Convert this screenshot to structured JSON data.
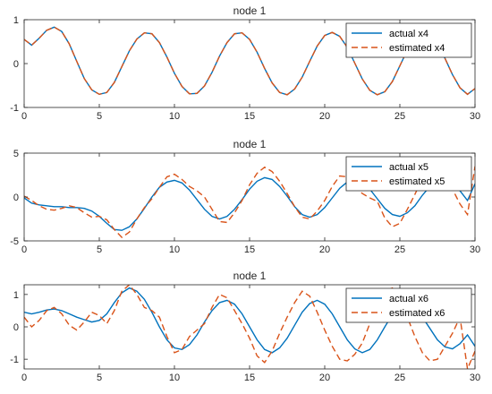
{
  "chart_data": [
    {
      "type": "line",
      "title": "node 1",
      "xlim": [
        0,
        30
      ],
      "ylim": [
        -1,
        1
      ],
      "xticks": [
        0,
        5,
        10,
        15,
        20,
        25,
        30
      ],
      "yticks": [
        -1,
        0,
        1
      ],
      "legend": "top-right",
      "series": [
        {
          "name": "actual x4",
          "color": "#0072BD",
          "style": "solid",
          "x": [
            0,
            0.5,
            1,
            1.5,
            2,
            2.5,
            3,
            3.5,
            4,
            4.5,
            5,
            5.5,
            6,
            6.5,
            7,
            7.5,
            8,
            8.5,
            9,
            9.5,
            10,
            10.5,
            11,
            11.5,
            12,
            12.5,
            13,
            13.5,
            14,
            14.5,
            15,
            15.5,
            16,
            16.5,
            17,
            17.5,
            18,
            18.5,
            19,
            19.5,
            20,
            20.5,
            21,
            21.5,
            22,
            22.5,
            23,
            23.5,
            24,
            24.5,
            25,
            25.5,
            26,
            26.5,
            27,
            27.5,
            28,
            28.5,
            29,
            29.5,
            30
          ],
          "y": [
            0.55,
            0.42,
            0.58,
            0.76,
            0.83,
            0.73,
            0.45,
            0.05,
            -0.34,
            -0.6,
            -0.7,
            -0.66,
            -0.43,
            -0.07,
            0.29,
            0.56,
            0.7,
            0.68,
            0.48,
            0.15,
            -0.22,
            -0.52,
            -0.69,
            -0.68,
            -0.51,
            -0.2,
            0.17,
            0.48,
            0.68,
            0.7,
            0.55,
            0.26,
            -0.11,
            -0.44,
            -0.66,
            -0.71,
            -0.58,
            -0.31,
            0.05,
            0.4,
            0.64,
            0.71,
            0.62,
            0.37,
            0.01,
            -0.35,
            -0.61,
            -0.71,
            -0.64,
            -0.41,
            -0.05,
            0.31,
            0.59,
            0.71,
            0.66,
            0.46,
            0.12,
            -0.25,
            -0.55,
            -0.7,
            -0.57
          ]
        },
        {
          "name": "estimated x4",
          "color": "#D95319",
          "style": "dashed",
          "x": [
            0,
            0.5,
            1,
            1.5,
            2,
            2.5,
            3,
            3.5,
            4,
            4.5,
            5,
            5.5,
            6,
            6.5,
            7,
            7.5,
            8,
            8.5,
            9,
            9.5,
            10,
            10.5,
            11,
            11.5,
            12,
            12.5,
            13,
            13.5,
            14,
            14.5,
            15,
            15.5,
            16,
            16.5,
            17,
            17.5,
            18,
            18.5,
            19,
            19.5,
            20,
            20.5,
            21,
            21.5,
            22,
            22.5,
            23,
            23.5,
            24,
            24.5,
            25,
            25.5,
            26,
            26.5,
            27,
            27.5,
            28,
            28.5,
            29,
            29.5,
            30
          ],
          "y": [
            0.55,
            0.42,
            0.58,
            0.76,
            0.83,
            0.73,
            0.45,
            0.05,
            -0.34,
            -0.6,
            -0.7,
            -0.66,
            -0.43,
            -0.07,
            0.29,
            0.56,
            0.7,
            0.68,
            0.48,
            0.15,
            -0.22,
            -0.52,
            -0.69,
            -0.68,
            -0.51,
            -0.2,
            0.17,
            0.48,
            0.68,
            0.7,
            0.55,
            0.26,
            -0.11,
            -0.44,
            -0.66,
            -0.71,
            -0.58,
            -0.31,
            0.05,
            0.4,
            0.64,
            0.71,
            0.62,
            0.37,
            0.01,
            -0.35,
            -0.61,
            -0.71,
            -0.64,
            -0.41,
            -0.05,
            0.31,
            0.59,
            0.71,
            0.66,
            0.46,
            0.12,
            -0.25,
            -0.55,
            -0.7,
            -0.57
          ]
        }
      ]
    },
    {
      "type": "line",
      "title": "node 1",
      "xlim": [
        0,
        30
      ],
      "ylim": [
        -5,
        5
      ],
      "xticks": [
        0,
        5,
        10,
        15,
        20,
        25,
        30
      ],
      "yticks": [
        -5,
        0,
        5
      ],
      "legend": "top-right",
      "series": [
        {
          "name": "actual x5",
          "color": "#0072BD",
          "style": "solid",
          "x": [
            0,
            0.5,
            1,
            1.5,
            2,
            2.5,
            3,
            3.5,
            4,
            4.5,
            5,
            5.5,
            6,
            6.5,
            7,
            7.5,
            8,
            8.5,
            9,
            9.5,
            10,
            10.5,
            11,
            11.5,
            12,
            12.5,
            13,
            13.5,
            14,
            14.5,
            15,
            15.5,
            16,
            16.5,
            17,
            17.5,
            18,
            18.5,
            19,
            19.5,
            20,
            20.5,
            21,
            21.5,
            22,
            22.5,
            23,
            23.5,
            24,
            24.5,
            25,
            25.5,
            26,
            26.5,
            27,
            27.5,
            28,
            28.5,
            29,
            29.5,
            30
          ],
          "y": [
            -0.1,
            -0.7,
            -0.9,
            -1.0,
            -1.1,
            -1.1,
            -1.2,
            -1.2,
            -1.3,
            -1.6,
            -2.2,
            -3.0,
            -3.7,
            -3.8,
            -3.4,
            -2.5,
            -1.3,
            0.0,
            1.1,
            1.7,
            1.9,
            1.6,
            0.8,
            -0.3,
            -1.4,
            -2.2,
            -2.5,
            -2.2,
            -1.4,
            -0.3,
            0.9,
            1.8,
            2.2,
            2.0,
            1.2,
            0.1,
            -1.1,
            -2.0,
            -2.3,
            -2.0,
            -1.2,
            -0.1,
            1.0,
            1.7,
            2.0,
            1.7,
            0.9,
            -0.2,
            -1.3,
            -2.0,
            -2.2,
            -1.8,
            -1.0,
            0.2,
            1.2,
            1.9,
            2.0,
            1.6,
            0.7,
            -0.4,
            1.5
          ]
        },
        {
          "name": "estimated x5",
          "color": "#D95319",
          "style": "dashed",
          "x": [
            0,
            0.5,
            1,
            1.5,
            2,
            2.5,
            3,
            3.5,
            4,
            4.5,
            5,
            5.5,
            6,
            6.5,
            7,
            7.5,
            8,
            8.5,
            9,
            9.5,
            10,
            10.5,
            11,
            11.5,
            12,
            12.5,
            13,
            13.5,
            14,
            14.5,
            15,
            15.5,
            16,
            16.5,
            17,
            17.5,
            18,
            18.5,
            19,
            19.5,
            20,
            20.5,
            21,
            21.5,
            22,
            22.5,
            23,
            23.5,
            24,
            24.5,
            25,
            25.5,
            26,
            26.5,
            27,
            27.5,
            28,
            28.5,
            29,
            29.5,
            30
          ],
          "y": [
            0.1,
            -0.4,
            -1.0,
            -1.4,
            -1.5,
            -1.3,
            -1.0,
            -1.2,
            -1.8,
            -2.3,
            -2.2,
            -2.6,
            -3.7,
            -4.6,
            -4.0,
            -2.5,
            -1.2,
            -0.2,
            1.1,
            2.3,
            2.6,
            2.0,
            1.2,
            0.7,
            0.0,
            -1.4,
            -2.8,
            -2.9,
            -1.8,
            -0.4,
            1.4,
            2.7,
            3.4,
            2.9,
            1.8,
            0.4,
            -1.1,
            -2.3,
            -2.5,
            -1.6,
            -0.4,
            1.2,
            2.4,
            2.3,
            1.2,
            0.4,
            -0.1,
            -0.5,
            -2.4,
            -3.4,
            -3.0,
            -1.4,
            0.3,
            2.1,
            3.2,
            3.3,
            2.2,
            0.9,
            -0.8,
            -2.0,
            3.5
          ]
        }
      ]
    },
    {
      "type": "line",
      "title": "node 1",
      "xlim": [
        0,
        30
      ],
      "ylim": [
        -1.3,
        1.3
      ],
      "xticks": [
        0,
        5,
        10,
        15,
        20,
        25,
        30
      ],
      "yticks": [
        -1,
        0,
        1
      ],
      "legend": "top-right",
      "series": [
        {
          "name": "actual x6",
          "color": "#0072BD",
          "style": "solid",
          "x": [
            0,
            0.5,
            1,
            1.5,
            2,
            2.5,
            3,
            3.5,
            4,
            4.5,
            5,
            5.5,
            6,
            6.5,
            7,
            7.5,
            8,
            8.5,
            9,
            9.5,
            10,
            10.5,
            11,
            11.5,
            12,
            12.5,
            13,
            13.5,
            14,
            14.5,
            15,
            15.5,
            16,
            16.5,
            17,
            17.5,
            18,
            18.5,
            19,
            19.5,
            20,
            20.5,
            21,
            21.5,
            22,
            22.5,
            23,
            23.5,
            24,
            24.5,
            25,
            25.5,
            26,
            26.5,
            27,
            27.5,
            28,
            28.5,
            29,
            29.5,
            30
          ],
          "y": [
            0.45,
            0.4,
            0.45,
            0.52,
            0.55,
            0.5,
            0.4,
            0.3,
            0.22,
            0.15,
            0.2,
            0.4,
            0.75,
            1.05,
            1.2,
            1.1,
            0.85,
            0.45,
            0.0,
            -0.4,
            -0.65,
            -0.7,
            -0.55,
            -0.25,
            0.15,
            0.5,
            0.75,
            0.82,
            0.7,
            0.4,
            0.0,
            -0.4,
            -0.7,
            -0.8,
            -0.65,
            -0.35,
            0.05,
            0.45,
            0.72,
            0.82,
            0.7,
            0.4,
            0.0,
            -0.4,
            -0.68,
            -0.8,
            -0.7,
            -0.4,
            0.0,
            0.38,
            0.65,
            0.72,
            0.6,
            0.3,
            -0.05,
            -0.4,
            -0.62,
            -0.68,
            -0.52,
            -0.25,
            -0.6
          ]
        },
        {
          "name": "estimated x6",
          "color": "#D95319",
          "style": "dashed",
          "x": [
            0,
            0.5,
            1,
            1.5,
            2,
            2.5,
            3,
            3.5,
            4,
            4.5,
            5,
            5.5,
            6,
            6.5,
            7,
            7.5,
            8,
            8.5,
            9,
            9.5,
            10,
            10.5,
            11,
            11.5,
            12,
            12.5,
            13,
            13.5,
            14,
            14.5,
            15,
            15.5,
            16,
            16.5,
            17,
            17.5,
            18,
            18.5,
            19,
            19.5,
            20,
            20.5,
            21,
            21.5,
            22,
            22.5,
            23,
            23.5,
            24,
            24.5,
            25,
            25.5,
            26,
            26.5,
            27,
            27.5,
            28,
            28.5,
            29,
            29.5,
            30
          ],
          "y": [
            0.3,
            0.0,
            0.2,
            0.5,
            0.6,
            0.4,
            0.05,
            -0.1,
            0.15,
            0.45,
            0.35,
            0.1,
            0.5,
            1.1,
            1.3,
            1.0,
            0.6,
            0.5,
            0.3,
            -0.3,
            -0.8,
            -0.7,
            -0.3,
            -0.1,
            0.1,
            0.6,
            1.0,
            0.9,
            0.5,
            0.1,
            -0.35,
            -0.9,
            -1.1,
            -0.75,
            -0.2,
            0.3,
            0.75,
            1.1,
            0.95,
            0.45,
            -0.1,
            -0.6,
            -1.0,
            -1.05,
            -0.85,
            -0.5,
            0.1,
            0.7,
            1.1,
            1.2,
            0.8,
            0.3,
            -0.3,
            -0.8,
            -1.05,
            -1.0,
            -0.6,
            -0.2,
            0.3,
            -1.3,
            -0.75
          ]
        }
      ]
    }
  ]
}
